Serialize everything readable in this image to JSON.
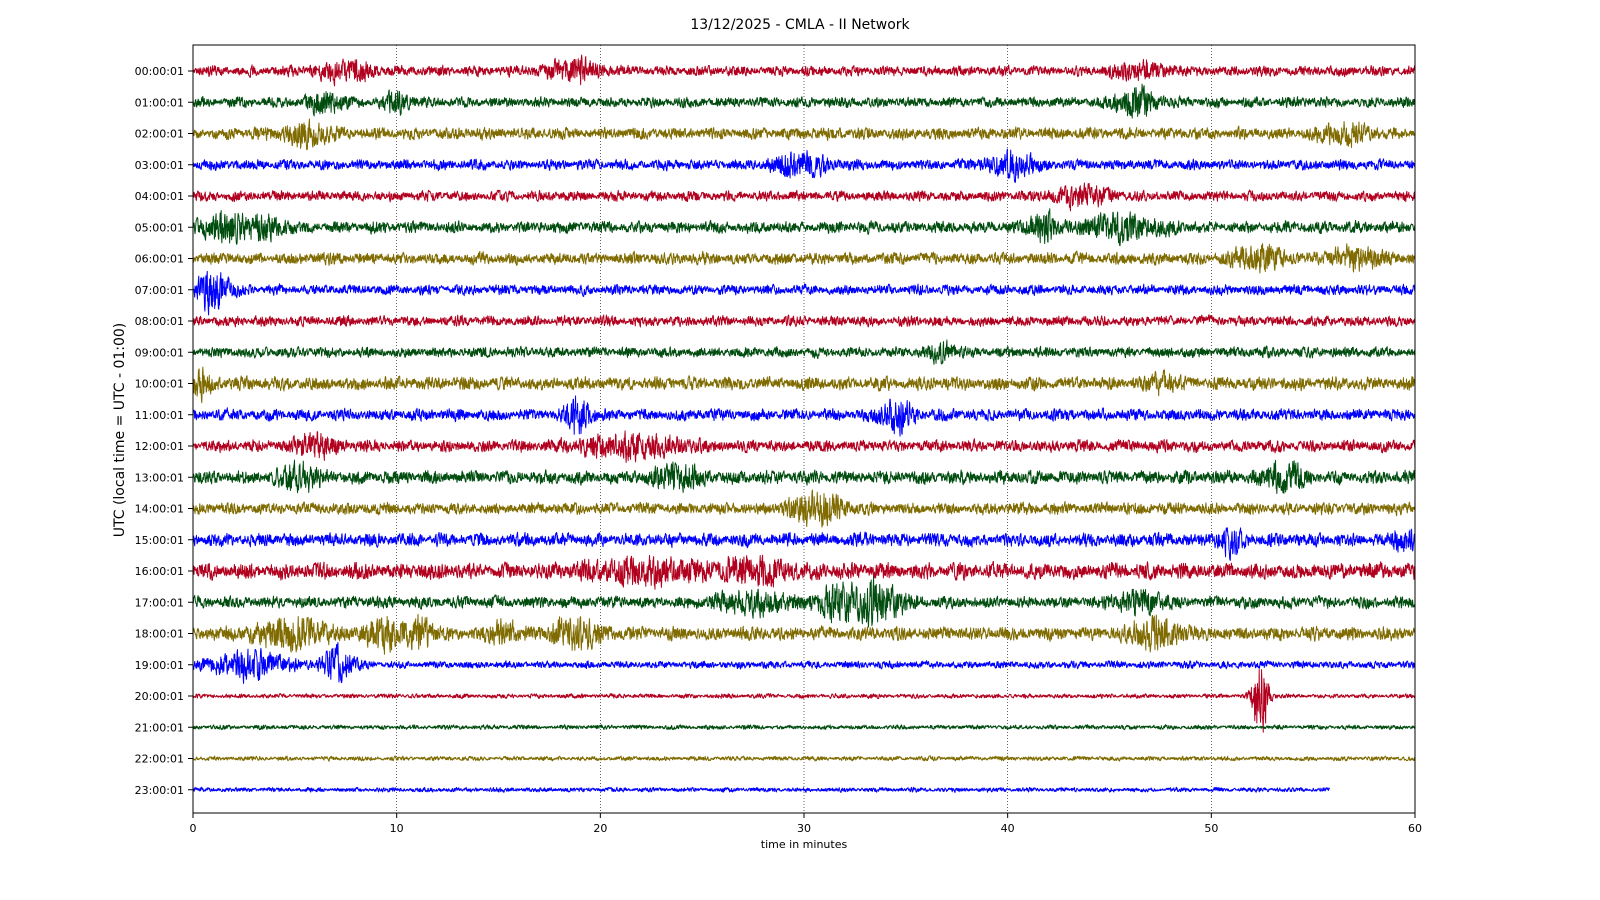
{
  "chart_data": {
    "type": "line",
    "title": "13/12/2025 - CMLA - II Network",
    "xlabel": "time in minutes",
    "ylabel": "UTC (local time = UTC - 01:00)",
    "xlim": [
      0,
      60
    ],
    "x_ticks": [
      "0",
      "10",
      "20",
      "30",
      "40",
      "50",
      "60"
    ],
    "grid": "vertical dotted at x ticks",
    "colors": [
      "#b2001f",
      "#004d0f",
      "#7f6b00",
      "#0000ff"
    ],
    "traces": [
      {
        "label": "00:00:01",
        "color": "#b2001f",
        "noise": 7,
        "events": [
          {
            "t": 7.5,
            "amp": 12,
            "dur": 2
          },
          {
            "t": 18.7,
            "amp": 14,
            "dur": 2
          },
          {
            "t": 46.5,
            "amp": 10,
            "dur": 2
          }
        ]
      },
      {
        "label": "01:00:01",
        "color": "#004d0f",
        "noise": 7,
        "events": [
          {
            "t": 6.5,
            "amp": 12,
            "dur": 1.5
          },
          {
            "t": 10,
            "amp": 13,
            "dur": 1
          },
          {
            "t": 46.3,
            "amp": 18,
            "dur": 1.5
          }
        ]
      },
      {
        "label": "02:00:01",
        "color": "#7f6b00",
        "noise": 8,
        "events": [
          {
            "t": 5.5,
            "amp": 12,
            "dur": 2
          },
          {
            "t": 56.5,
            "amp": 11,
            "dur": 2
          }
        ]
      },
      {
        "label": "03:00:01",
        "color": "#0000ff",
        "noise": 7,
        "events": [
          {
            "t": 29.8,
            "amp": 14,
            "dur": 2
          },
          {
            "t": 40.2,
            "amp": 13,
            "dur": 2
          }
        ]
      },
      {
        "label": "04:00:01",
        "color": "#b2001f",
        "noise": 7,
        "events": [
          {
            "t": 43.6,
            "amp": 13,
            "dur": 2
          }
        ]
      },
      {
        "label": "05:00:01",
        "color": "#004d0f",
        "noise": 8,
        "events": [
          {
            "t": 1.3,
            "amp": 14,
            "dur": 1.5
          },
          {
            "t": 3.2,
            "amp": 13,
            "dur": 2
          },
          {
            "t": 41.7,
            "amp": 18,
            "dur": 1
          },
          {
            "t": 45.6,
            "amp": 15,
            "dur": 3
          }
        ]
      },
      {
        "label": "06:00:01",
        "color": "#7f6b00",
        "noise": 8,
        "events": [
          {
            "t": 52.3,
            "amp": 14,
            "dur": 2
          },
          {
            "t": 57,
            "amp": 12,
            "dur": 2
          }
        ]
      },
      {
        "label": "07:00:01",
        "color": "#0000ff",
        "noise": 7,
        "events": [
          {
            "t": 1.0,
            "amp": 24,
            "dur": 1.2
          }
        ]
      },
      {
        "label": "08:00:01",
        "color": "#b2001f",
        "noise": 7,
        "events": []
      },
      {
        "label": "09:00:01",
        "color": "#004d0f",
        "noise": 7,
        "events": [
          {
            "t": 36.8,
            "amp": 12,
            "dur": 1
          }
        ]
      },
      {
        "label": "10:00:01",
        "color": "#7f6b00",
        "noise": 9,
        "events": [
          {
            "t": 0.4,
            "amp": 13,
            "dur": 1
          },
          {
            "t": 47.6,
            "amp": 11,
            "dur": 1
          }
        ]
      },
      {
        "label": "11:00:01",
        "color": "#0000ff",
        "noise": 8,
        "events": [
          {
            "t": 18.9,
            "amp": 22,
            "dur": 1
          },
          {
            "t": 34.5,
            "amp": 22,
            "dur": 1.2
          }
        ]
      },
      {
        "label": "12:00:01",
        "color": "#b2001f",
        "noise": 8,
        "events": [
          {
            "t": 6.0,
            "amp": 13,
            "dur": 1.5
          },
          {
            "t": 21.5,
            "amp": 13,
            "dur": 4
          }
        ]
      },
      {
        "label": "13:00:01",
        "color": "#004d0f",
        "noise": 9,
        "events": [
          {
            "t": 5.3,
            "amp": 14,
            "dur": 1.5
          },
          {
            "t": 23.8,
            "amp": 13,
            "dur": 2
          },
          {
            "t": 53.6,
            "amp": 18,
            "dur": 1.5
          }
        ]
      },
      {
        "label": "14:00:01",
        "color": "#7f6b00",
        "noise": 8,
        "events": [
          {
            "t": 30.6,
            "amp": 20,
            "dur": 2
          }
        ]
      },
      {
        "label": "15:00:01",
        "color": "#0000ff",
        "noise": 9,
        "events": [
          {
            "t": 50.9,
            "amp": 14,
            "dur": 1
          },
          {
            "t": 59.5,
            "amp": 13,
            "dur": 1
          }
        ]
      },
      {
        "label": "16:00:01",
        "color": "#b2001f",
        "noise": 11,
        "events": [
          {
            "t": 22,
            "amp": 12,
            "dur": 4
          },
          {
            "t": 27.5,
            "amp": 12,
            "dur": 3
          }
        ]
      },
      {
        "label": "17:00:01",
        "color": "#004d0f",
        "noise": 8,
        "events": [
          {
            "t": 27.5,
            "amp": 12,
            "dur": 3
          },
          {
            "t": 31.6,
            "amp": 22,
            "dur": 1.5
          },
          {
            "t": 33.6,
            "amp": 24,
            "dur": 2
          },
          {
            "t": 46.5,
            "amp": 12,
            "dur": 2
          }
        ]
      },
      {
        "label": "18:00:01",
        "color": "#7f6b00",
        "noise": 9,
        "events": [
          {
            "t": 4.8,
            "amp": 16,
            "dur": 3
          },
          {
            "t": 9.5,
            "amp": 18,
            "dur": 1.5
          },
          {
            "t": 11.2,
            "amp": 16,
            "dur": 1
          },
          {
            "t": 15.3,
            "amp": 15,
            "dur": 1
          },
          {
            "t": 18.8,
            "amp": 17,
            "dur": 2
          },
          {
            "t": 47.3,
            "amp": 18,
            "dur": 2
          }
        ]
      },
      {
        "label": "19:00:01",
        "color": "#0000ff",
        "noise": 5,
        "events": [
          {
            "t": 2.8,
            "amp": 17,
            "dur": 3
          },
          {
            "t": 7.1,
            "amp": 22,
            "dur": 1.2
          }
        ]
      },
      {
        "label": "20:00:01",
        "color": "#b2001f",
        "noise": 3,
        "events": [
          {
            "t": 52.4,
            "amp": 50,
            "dur": 0.6
          }
        ]
      },
      {
        "label": "21:00:01",
        "color": "#004d0f",
        "noise": 3,
        "events": []
      },
      {
        "label": "22:00:01",
        "color": "#7f6b00",
        "noise": 3,
        "events": []
      },
      {
        "label": "23:00:01",
        "color": "#0000ff",
        "noise": 3,
        "end": 55.8,
        "events": []
      }
    ]
  }
}
